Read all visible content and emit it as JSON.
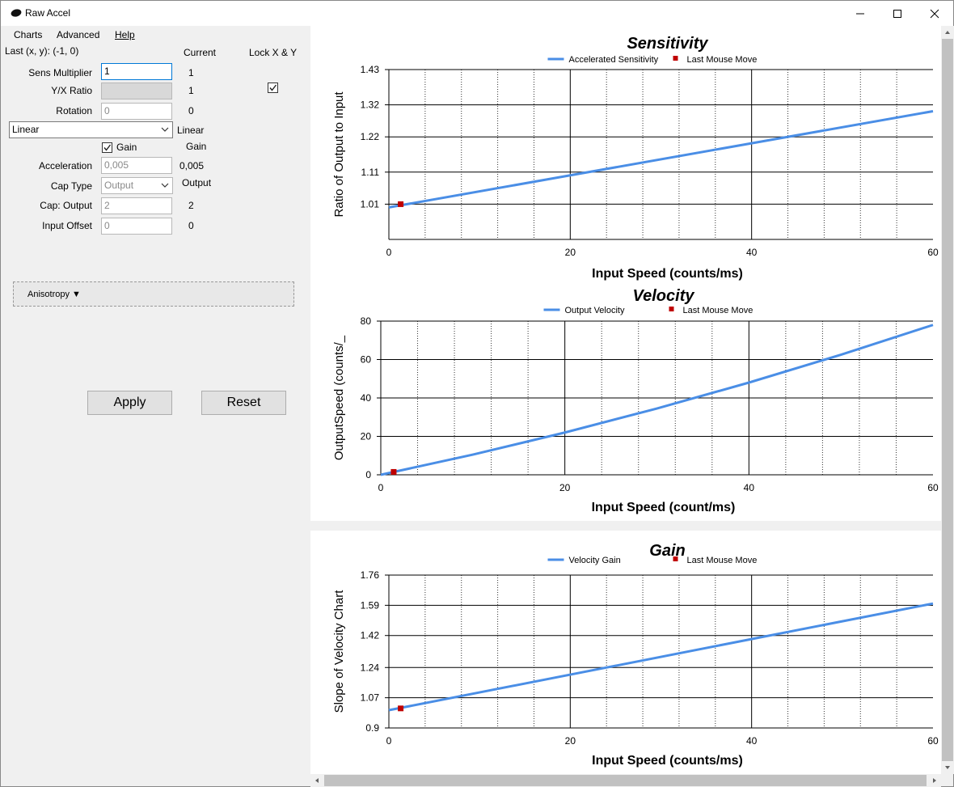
{
  "window": {
    "title": "Raw Accel",
    "app_icon": "mouse-icon"
  },
  "menu": [
    "Charts",
    "Advanced",
    "Help"
  ],
  "settings": {
    "last_xy": "Last (x, y): (-1, 0)",
    "current_header": "Current",
    "lock_header": "Lock X & Y",
    "sens_label": "Sens Multiplier",
    "sens_value": "1",
    "sens_current": "1",
    "yx_label": "Y/X Ratio",
    "yx_current": "1",
    "lock_checked": true,
    "rotation_label": "Rotation",
    "rotation_value": "0",
    "rotation_current": "0",
    "accel_type": "Linear",
    "accel_type_current": "Linear",
    "gain_label": "Gain",
    "gain_checked": true,
    "gain_current": "Gain",
    "acceleration_label": "Acceleration",
    "acceleration_value": "0,005",
    "acceleration_current": "0,005",
    "cap_type_label": "Cap Type",
    "cap_type_value": "Output",
    "cap_type_current": "Output",
    "cap_output_label": "Cap: Output",
    "cap_output_value": "2",
    "cap_output_current": "2",
    "input_offset_label": "Input Offset",
    "input_offset_value": "0",
    "input_offset_current": "0",
    "anisotropy_label": "Anisotropy ▼",
    "apply_label": "Apply",
    "reset_label": "Reset"
  },
  "colors": {
    "series": "#4a8ee6",
    "marker": "#c00000"
  },
  "chart_data": [
    {
      "type": "line",
      "title": "Sensitivity",
      "xlabel": "Input Speed (counts/ms)",
      "ylabel": "Ratio of Output to Input",
      "xlim": [
        0,
        60
      ],
      "ylim": [
        0.9,
        1.43
      ],
      "xticks": [
        "0",
        "20",
        "40",
        "60"
      ],
      "yticks": [
        "1.01",
        "1.11",
        "1.22",
        "1.32",
        "1.43"
      ],
      "yticks_values": [
        1.01,
        1.11,
        1.22,
        1.32,
        1.43
      ],
      "legend": "top-center",
      "grid": true,
      "series": [
        {
          "name": "Accelerated Sensitivity",
          "x": [
            0,
            20,
            40,
            60
          ],
          "y": [
            1.0,
            1.1,
            1.2,
            1.3
          ]
        },
        {
          "name": "Last Mouse Move",
          "x": [
            1.3
          ],
          "y": [
            1.01
          ]
        }
      ]
    },
    {
      "type": "line",
      "title": "Velocity",
      "xlabel": "Input Speed (count/ms)",
      "ylabel": "OutputSpeed (counts/_",
      "xlim": [
        0,
        60
      ],
      "ylim": [
        0,
        80
      ],
      "xticks": [
        "0",
        "20",
        "40",
        "60"
      ],
      "yticks": [
        "0",
        "20",
        "40",
        "60",
        "80"
      ],
      "yticks_values": [
        0,
        20,
        40,
        60,
        80
      ],
      "legend": "top-center",
      "grid": true,
      "series": [
        {
          "name": "Output Velocity",
          "x": [
            0,
            10,
            20,
            30,
            40,
            50,
            60
          ],
          "y": [
            0,
            10.5,
            22,
            34.5,
            48,
            62.5,
            78
          ]
        },
        {
          "name": "Last Mouse Move",
          "x": [
            1.4
          ],
          "y": [
            1.5
          ]
        }
      ]
    },
    {
      "type": "line",
      "title": "Gain",
      "xlabel": "Input Speed (counts/ms)",
      "ylabel": "Slope of Velocity Chart",
      "xlim": [
        0,
        60
      ],
      "ylim": [
        0.9,
        1.76
      ],
      "xticks": [
        "0",
        "20",
        "40",
        "60"
      ],
      "yticks": [
        "0.9",
        "1.07",
        "1.24",
        "1.42",
        "1.59",
        "1.76"
      ],
      "yticks_values": [
        0.9,
        1.07,
        1.24,
        1.42,
        1.59,
        1.76
      ],
      "legend": "top-center",
      "grid": true,
      "series": [
        {
          "name": "Velocity Gain",
          "x": [
            0,
            60
          ],
          "y": [
            1.0,
            1.6
          ]
        },
        {
          "name": "Last Mouse Move",
          "x": [
            1.3
          ],
          "y": [
            1.01
          ]
        }
      ]
    }
  ]
}
